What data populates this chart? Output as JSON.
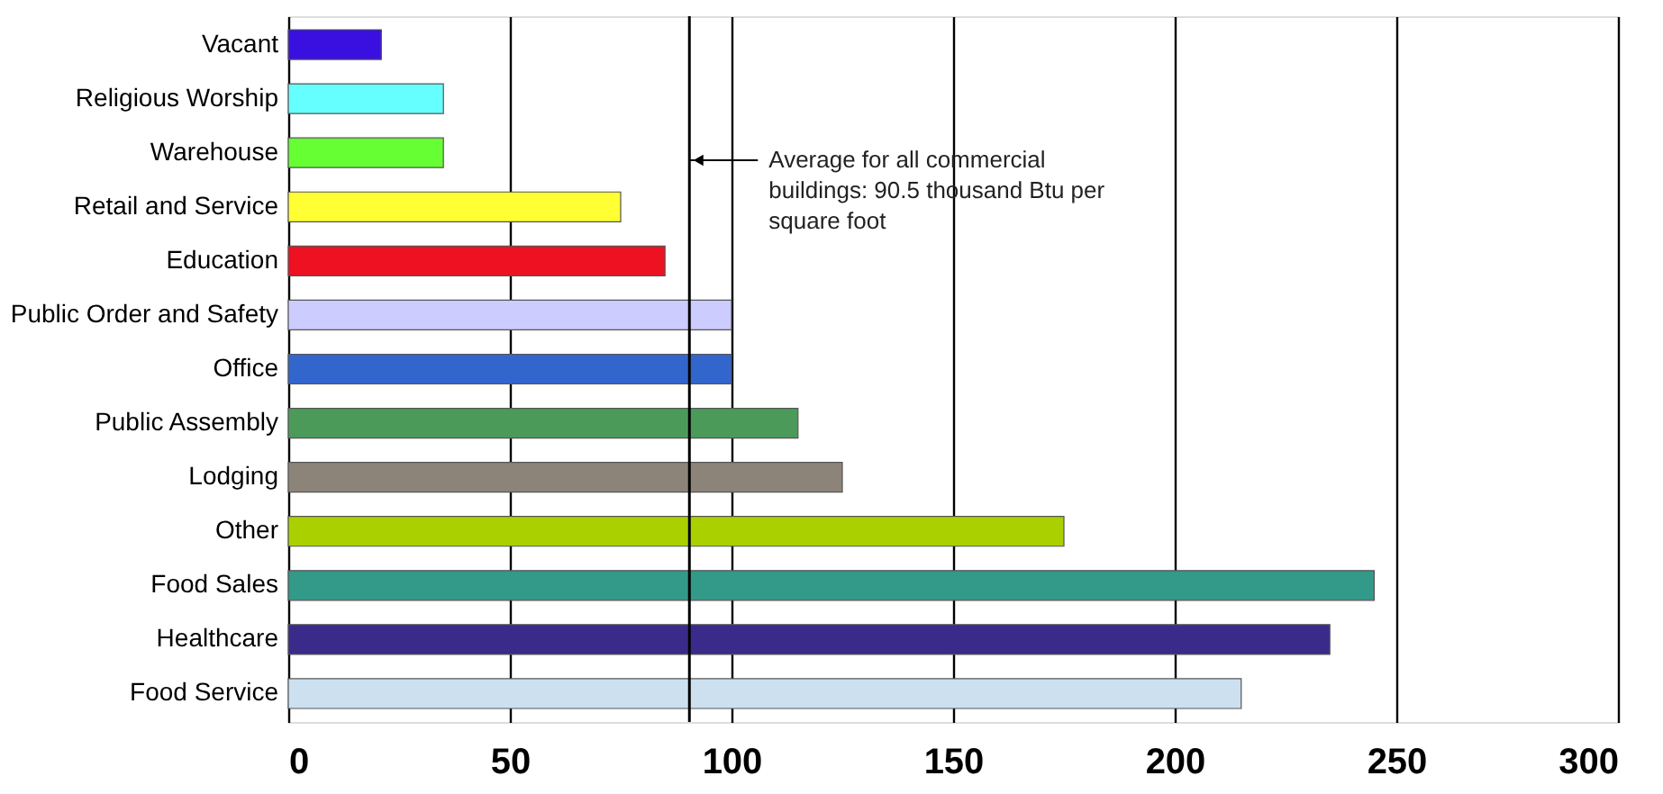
{
  "chart_data": {
    "type": "bar",
    "orientation": "horizontal",
    "categories": [
      "Vacant",
      "Religious Worship",
      "Warehouse",
      "Retail and Service",
      "Education",
      "Public Order and Safety",
      "Office",
      "Public Assembly",
      "Lodging",
      "Other",
      "Food Sales",
      "Healthcare",
      "Food Service"
    ],
    "values": [
      21,
      35,
      35,
      75,
      85,
      100,
      100,
      115,
      125,
      175,
      245,
      235,
      215
    ],
    "colors": [
      "#3a10e0",
      "#66ffff",
      "#66ff33",
      "#ffff33",
      "#ee1122",
      "#ccccff",
      "#3366cc",
      "#4c9a5a",
      "#8c8478",
      "#aad000",
      "#339988",
      "#3a2a8a",
      "#cce0f0"
    ],
    "xlim": [
      0,
      300
    ],
    "xticks": [
      0,
      50,
      100,
      150,
      200,
      250,
      300
    ],
    "grid": "x",
    "ref_lines": [
      {
        "axis": "x",
        "value": 90.5,
        "label": "Average for all commercial buildings: 90.5 thousand Btu per square foot",
        "color": "#000000"
      }
    ]
  }
}
